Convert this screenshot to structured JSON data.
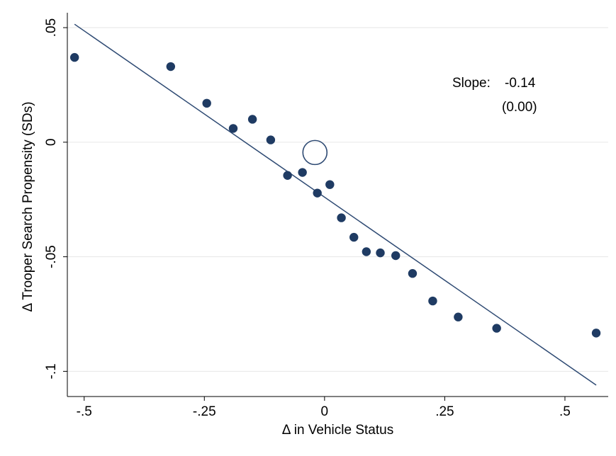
{
  "chart_data": {
    "type": "scatter",
    "xlabel": "Δ in Vehicle Status",
    "ylabel": "Δ Trooper Search Propensity (SDs)",
    "xlim": [
      -0.535,
      0.59
    ],
    "ylim": [
      -0.111,
      0.0565
    ],
    "xticks": [
      {
        "value": -0.5,
        "label": "-.5"
      },
      {
        "value": -0.25,
        "label": "-.25"
      },
      {
        "value": 0,
        "label": "0"
      },
      {
        "value": 0.25,
        "label": ".25"
      },
      {
        "value": 0.5,
        "label": ".5"
      }
    ],
    "yticks": [
      {
        "value": 0.05,
        "label": ".05"
      },
      {
        "value": 0,
        "label": "0"
      },
      {
        "value": -0.05,
        "label": "-.05"
      },
      {
        "value": -0.1,
        "label": "-.1"
      }
    ],
    "grid": true,
    "points": [
      {
        "x": -0.52,
        "y": 0.037
      },
      {
        "x": -0.32,
        "y": 0.033
      },
      {
        "x": -0.245,
        "y": 0.017
      },
      {
        "x": -0.19,
        "y": 0.006
      },
      {
        "x": -0.15,
        "y": 0.01
      },
      {
        "x": -0.112,
        "y": 0.001
      },
      {
        "x": -0.077,
        "y": -0.0145
      },
      {
        "x": -0.046,
        "y": -0.0132
      },
      {
        "x": -0.015,
        "y": -0.0222
      },
      {
        "x": 0.011,
        "y": -0.0185
      },
      {
        "x": 0.035,
        "y": -0.033
      },
      {
        "x": 0.061,
        "y": -0.0415
      },
      {
        "x": 0.087,
        "y": -0.0478
      },
      {
        "x": 0.116,
        "y": -0.0483
      },
      {
        "x": 0.148,
        "y": -0.0495
      },
      {
        "x": 0.183,
        "y": -0.0573
      },
      {
        "x": 0.225,
        "y": -0.0693
      },
      {
        "x": 0.278,
        "y": -0.0763
      },
      {
        "x": 0.358,
        "y": -0.0812
      },
      {
        "x": 0.565,
        "y": -0.0833
      }
    ],
    "highlight": {
      "x": -0.02,
      "y": -0.0045
    },
    "fit_line": {
      "x": [
        -0.52,
        0.565
      ],
      "y": [
        0.0515,
        -0.106
      ]
    },
    "annotation": {
      "slope_label": "Slope:",
      "slope_value": "-0.14",
      "slope_se": "(0.00)"
    },
    "colors": {
      "marker": "#1f3b63",
      "line": "#2e4a73",
      "grid": "#e6e6e6",
      "axis": "#000000"
    }
  }
}
